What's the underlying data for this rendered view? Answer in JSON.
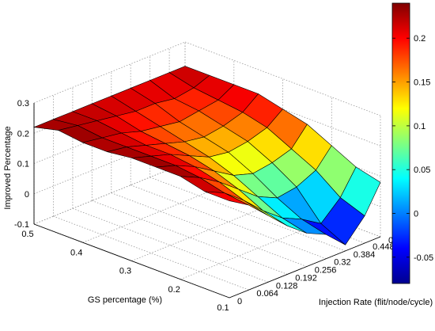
{
  "chart_data": {
    "type": "surface",
    "title": "",
    "xlabel": "GS percentage (%)",
    "ylabel": "Injection Rate (flit/node/cycle)",
    "zlabel": "Improved Percentage",
    "x_ticks": [
      "0.5",
      "0.4",
      "0.3",
      "0.2",
      "0.1"
    ],
    "y_ticks": [
      "0",
      "0.064",
      "0.128",
      "0.192",
      "0.256",
      "0.32",
      "0.384",
      "0.448",
      "0.5"
    ],
    "z_ticks": [
      "0.3",
      "0.2",
      "0.1",
      "0",
      "-0.1"
    ],
    "zlim": [
      -0.1,
      0.3
    ],
    "colorbar": {
      "ticks": [
        "0.2",
        "0.15",
        "0.1",
        "0.05",
        "0",
        "-0.05"
      ],
      "range": [
        -0.08,
        0.24
      ],
      "colormap": "jet"
    },
    "grid": true,
    "x": [
      0.5,
      0.45,
      0.4,
      0.35,
      0.3,
      0.25,
      0.2,
      0.15,
      0.1
    ],
    "y": [
      0,
      0.064,
      0.128,
      0.192,
      0.256,
      0.32,
      0.384,
      0.448,
      0.5
    ],
    "z": [
      [
        0.22,
        0.22,
        0.22,
        0.22,
        0.22,
        0.22,
        0.22,
        0.22,
        0.22
      ],
      [
        0.24,
        0.23,
        0.22,
        0.21,
        0.2,
        0.2,
        0.19,
        0.2,
        0.22
      ],
      [
        0.23,
        0.22,
        0.21,
        0.19,
        0.18,
        0.17,
        0.18,
        0.19,
        0.22
      ],
      [
        0.23,
        0.22,
        0.2,
        0.18,
        0.16,
        0.15,
        0.16,
        0.18,
        0.22
      ],
      [
        0.24,
        0.22,
        0.2,
        0.17,
        0.14,
        0.13,
        0.14,
        0.16,
        0.2
      ],
      [
        0.24,
        0.22,
        0.19,
        0.15,
        0.11,
        0.09,
        0.1,
        0.12,
        0.18
      ],
      [
        0.24,
        0.21,
        0.17,
        0.12,
        0.07,
        0.04,
        0.05,
        0.08,
        0.14
      ],
      [
        0.22,
        0.19,
        0.14,
        0.08,
        0.03,
        0.0,
        -0.04,
        0.02,
        0.1
      ],
      [
        0.22,
        0.18,
        0.12,
        0.06,
        0.01,
        -0.02,
        -0.08,
        -0.01,
        0.08
      ]
    ]
  }
}
